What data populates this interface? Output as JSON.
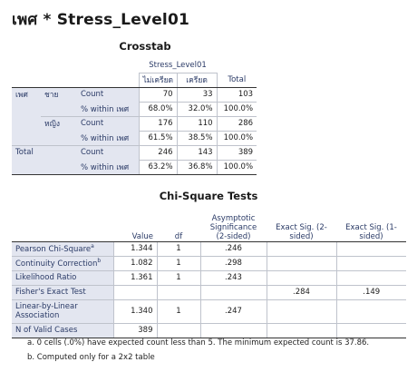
{
  "title": "เพศ * Stress_Level01",
  "crosstab": {
    "caption": "Crosstab",
    "group_header": "Stress_Level01",
    "col_headers": [
      "ไม่เครียด",
      "เครียด",
      "Total"
    ],
    "rows": [
      {
        "g1": "เพศ",
        "g2": "ชาย",
        "stat": "Count",
        "v": [
          "70",
          "33",
          "103"
        ]
      },
      {
        "g1": "",
        "g2": "",
        "stat": "% within เพศ",
        "v": [
          "68.0%",
          "32.0%",
          "100.0%"
        ]
      },
      {
        "g1": "",
        "g2": "หญิง",
        "stat": "Count",
        "v": [
          "176",
          "110",
          "286"
        ]
      },
      {
        "g1": "",
        "g2": "",
        "stat": "% within เพศ",
        "v": [
          "61.5%",
          "38.5%",
          "100.0%"
        ]
      },
      {
        "g1": "Total",
        "g2": "",
        "stat": "Count",
        "v": [
          "246",
          "143",
          "389"
        ]
      },
      {
        "g1": "",
        "g2": "",
        "stat": "% within เพศ",
        "v": [
          "63.2%",
          "36.8%",
          "100.0%"
        ]
      }
    ]
  },
  "chi": {
    "caption": "Chi-Square Tests",
    "col_headers": [
      "Value",
      "df",
      "Asymptotic Significance (2-sided)",
      "Exact Sig. (2-sided)",
      "Exact Sig. (1-sided)"
    ],
    "rows": [
      {
        "label": "Pearson Chi-Square",
        "sup": "a",
        "value": "1.344",
        "df": "1",
        "asym": ".246",
        "e2": "",
        "e1": ""
      },
      {
        "label": "Continuity Correction",
        "sup": "b",
        "value": "1.082",
        "df": "1",
        "asym": ".298",
        "e2": "",
        "e1": ""
      },
      {
        "label": "Likelihood Ratio",
        "sup": "",
        "value": "1.361",
        "df": "1",
        "asym": ".243",
        "e2": "",
        "e1": ""
      },
      {
        "label": "Fisher's Exact Test",
        "sup": "",
        "value": "",
        "df": "",
        "asym": "",
        "e2": ".284",
        "e1": ".149"
      },
      {
        "label": "Linear-by-Linear Association",
        "sup": "",
        "value": "1.340",
        "df": "1",
        "asym": ".247",
        "e2": "",
        "e1": ""
      },
      {
        "label": "N of Valid Cases",
        "sup": "",
        "value": "389",
        "df": "",
        "asym": "",
        "e2": "",
        "e1": ""
      }
    ],
    "footnotes": [
      "a. 0 cells (.0%) have expected count less than 5. The minimum expected count is 37.86.",
      "b. Computed only for a 2x2 table"
    ]
  }
}
